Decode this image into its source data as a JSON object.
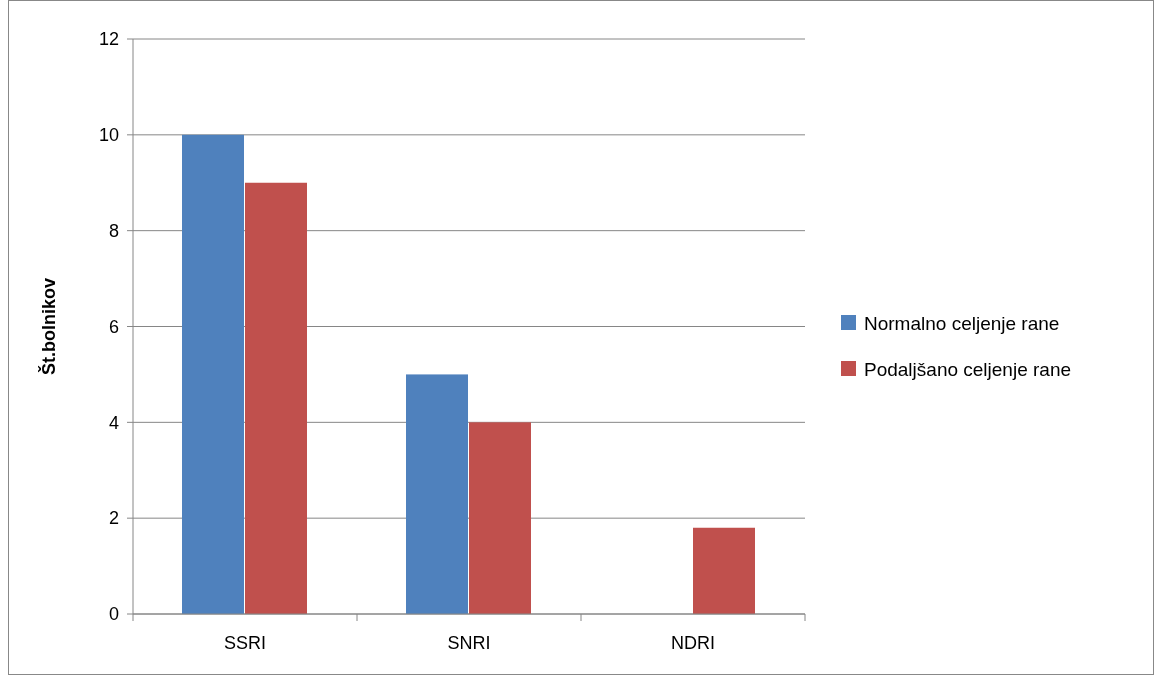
{
  "chart_data": {
    "type": "bar",
    "ylabel": "Št.bolnikov",
    "categories": [
      "SSRI",
      "SNRI",
      "NDRI"
    ],
    "series": [
      {
        "name": "Normalno celjenje rane",
        "color": "#4f81bd",
        "values": [
          10,
          5,
          0
        ]
      },
      {
        "name": "Podaljšano celjenje rane",
        "color": "#c0504d",
        "values": [
          9,
          4,
          1.8
        ]
      }
    ],
    "ylim": [
      0,
      12
    ],
    "yticks": [
      0,
      2,
      4,
      6,
      8,
      10,
      12
    ],
    "grid": "y",
    "legend": "right"
  }
}
